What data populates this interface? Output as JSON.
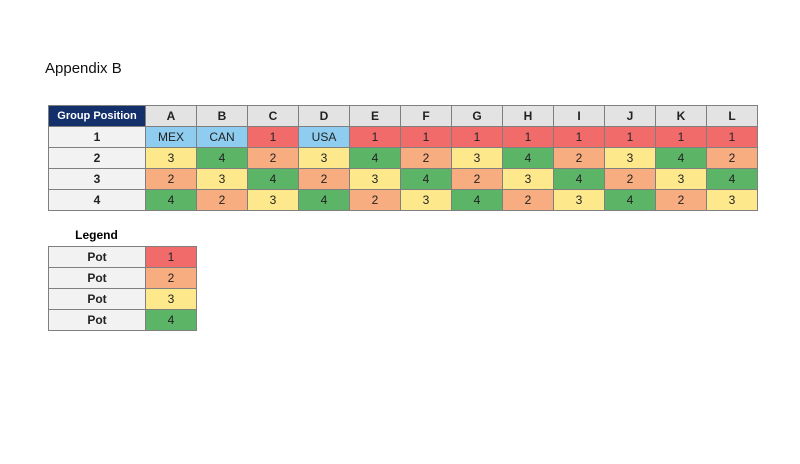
{
  "title": "Appendix B",
  "table": {
    "header": [
      "Group Position",
      "A",
      "B",
      "C",
      "D",
      "E",
      "F",
      "G",
      "H",
      "I",
      "J",
      "K",
      "L"
    ],
    "rows": [
      {
        "label": "1",
        "cells": [
          {
            "text": "MEX",
            "color": "#8ecdf0"
          },
          {
            "text": "CAN",
            "color": "#8ecdf0"
          },
          {
            "text": "1",
            "color": "#f26b6b"
          },
          {
            "text": "USA",
            "color": "#8ecdf0"
          },
          {
            "text": "1",
            "color": "#f26b6b"
          },
          {
            "text": "1",
            "color": "#f26b6b"
          },
          {
            "text": "1",
            "color": "#f26b6b"
          },
          {
            "text": "1",
            "color": "#f26b6b"
          },
          {
            "text": "1",
            "color": "#f26b6b"
          },
          {
            "text": "1",
            "color": "#f26b6b"
          },
          {
            "text": "1",
            "color": "#f26b6b"
          },
          {
            "text": "1",
            "color": "#f26b6b"
          }
        ]
      },
      {
        "label": "2",
        "cells": [
          {
            "text": "3",
            "color": "#fde98c"
          },
          {
            "text": "4",
            "color": "#5cb567"
          },
          {
            "text": "2",
            "color": "#f7ad80"
          },
          {
            "text": "3",
            "color": "#fde98c"
          },
          {
            "text": "4",
            "color": "#5cb567"
          },
          {
            "text": "2",
            "color": "#f7ad80"
          },
          {
            "text": "3",
            "color": "#fde98c"
          },
          {
            "text": "4",
            "color": "#5cb567"
          },
          {
            "text": "2",
            "color": "#f7ad80"
          },
          {
            "text": "3",
            "color": "#fde98c"
          },
          {
            "text": "4",
            "color": "#5cb567"
          },
          {
            "text": "2",
            "color": "#f7ad80"
          }
        ]
      },
      {
        "label": "3",
        "cells": [
          {
            "text": "2",
            "color": "#f7ad80"
          },
          {
            "text": "3",
            "color": "#fde98c"
          },
          {
            "text": "4",
            "color": "#5cb567"
          },
          {
            "text": "2",
            "color": "#f7ad80"
          },
          {
            "text": "3",
            "color": "#fde98c"
          },
          {
            "text": "4",
            "color": "#5cb567"
          },
          {
            "text": "2",
            "color": "#f7ad80"
          },
          {
            "text": "3",
            "color": "#fde98c"
          },
          {
            "text": "4",
            "color": "#5cb567"
          },
          {
            "text": "2",
            "color": "#f7ad80"
          },
          {
            "text": "3",
            "color": "#fde98c"
          },
          {
            "text": "4",
            "color": "#5cb567"
          }
        ]
      },
      {
        "label": "4",
        "cells": [
          {
            "text": "4",
            "color": "#5cb567"
          },
          {
            "text": "2",
            "color": "#f7ad80"
          },
          {
            "text": "3",
            "color": "#fde98c"
          },
          {
            "text": "4",
            "color": "#5cb567"
          },
          {
            "text": "2",
            "color": "#f7ad80"
          },
          {
            "text": "3",
            "color": "#fde98c"
          },
          {
            "text": "4",
            "color": "#5cb567"
          },
          {
            "text": "2",
            "color": "#f7ad80"
          },
          {
            "text": "3",
            "color": "#fde98c"
          },
          {
            "text": "4",
            "color": "#5cb567"
          },
          {
            "text": "2",
            "color": "#f7ad80"
          },
          {
            "text": "3",
            "color": "#fde98c"
          }
        ]
      }
    ]
  },
  "legend": {
    "title": "Legend",
    "rows": [
      {
        "label": "Pot",
        "text": "1",
        "color": "#f26b6b"
      },
      {
        "label": "Pot",
        "text": "2",
        "color": "#f7ad80"
      },
      {
        "label": "Pot",
        "text": "3",
        "color": "#fde98c"
      },
      {
        "label": "Pot",
        "text": "4",
        "color": "#5cb567"
      }
    ]
  }
}
